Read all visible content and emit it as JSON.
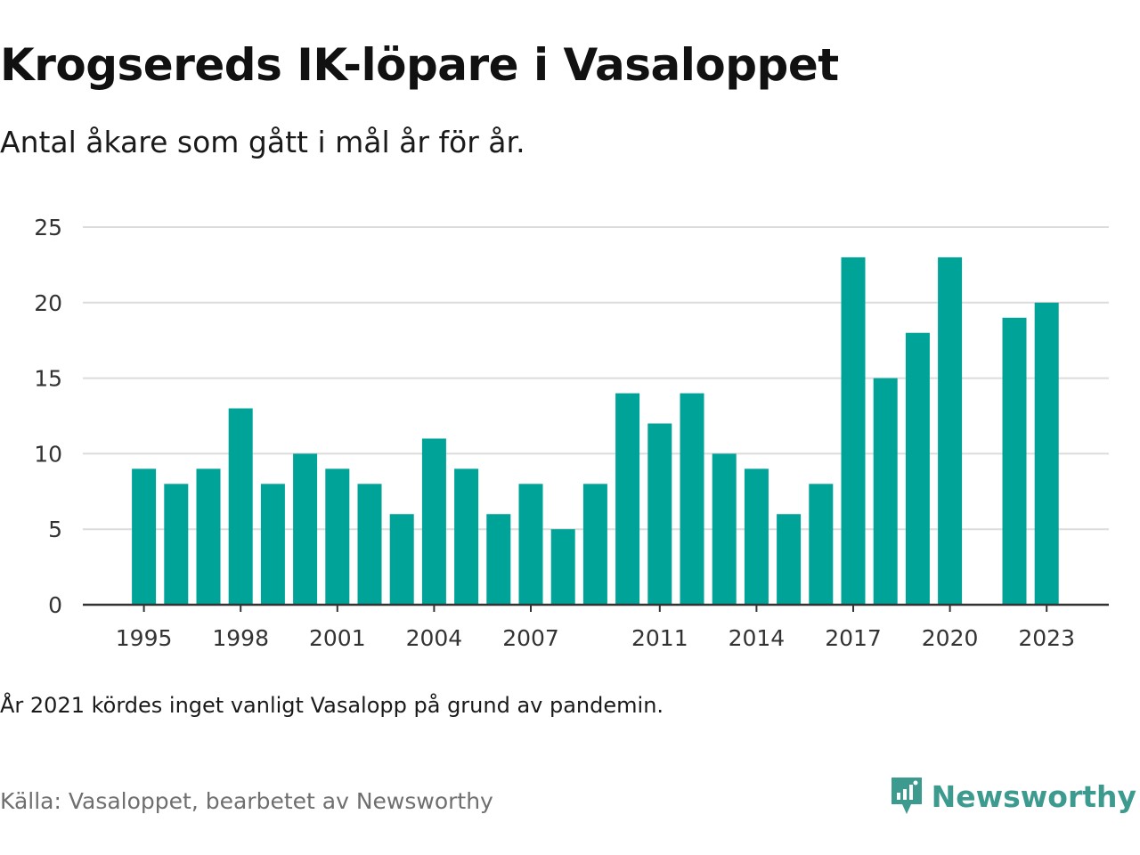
{
  "title": "Krogsereds IK-löpare i Vasaloppet",
  "subtitle": "Antal åkare som gått i mål år för år.",
  "note": "År 2021 kördes inget vanligt Vasalopp på grund av pandemin.",
  "source": "Källa: Vasaloppet, bearbetet av Newsworthy",
  "brand": {
    "name": "Newsworthy",
    "icon": "newsworthy-logo-icon",
    "color": "#3d9a8f"
  },
  "colors": {
    "bar": "#00a398",
    "grid": "#dcdcdc",
    "axis": "#333333",
    "text": "#333333"
  },
  "chart_data": {
    "type": "bar",
    "categories": [
      "1995",
      "1996",
      "1997",
      "1998",
      "1999",
      "2000",
      "2001",
      "2002",
      "2003",
      "2004",
      "2005",
      "2006",
      "2007",
      "2008",
      "2009",
      "2010",
      "2011",
      "2012",
      "2013",
      "2014",
      "2015",
      "2016",
      "2017",
      "2018",
      "2019",
      "2020",
      "2021",
      "2022",
      "2023"
    ],
    "values": [
      9,
      8,
      9,
      13,
      8,
      10,
      9,
      8,
      6,
      11,
      9,
      6,
      8,
      5,
      8,
      14,
      12,
      14,
      10,
      9,
      6,
      8,
      23,
      15,
      18,
      23,
      null,
      19,
      20
    ],
    "x_tick_labels": [
      "1995",
      "1998",
      "2001",
      "2004",
      "2007",
      "2011",
      "2014",
      "2017",
      "2020",
      "2023"
    ],
    "y_ticks": [
      0,
      5,
      10,
      15,
      20,
      25
    ],
    "ylim": [
      0,
      25
    ],
    "grid": true,
    "legend": "none"
  }
}
